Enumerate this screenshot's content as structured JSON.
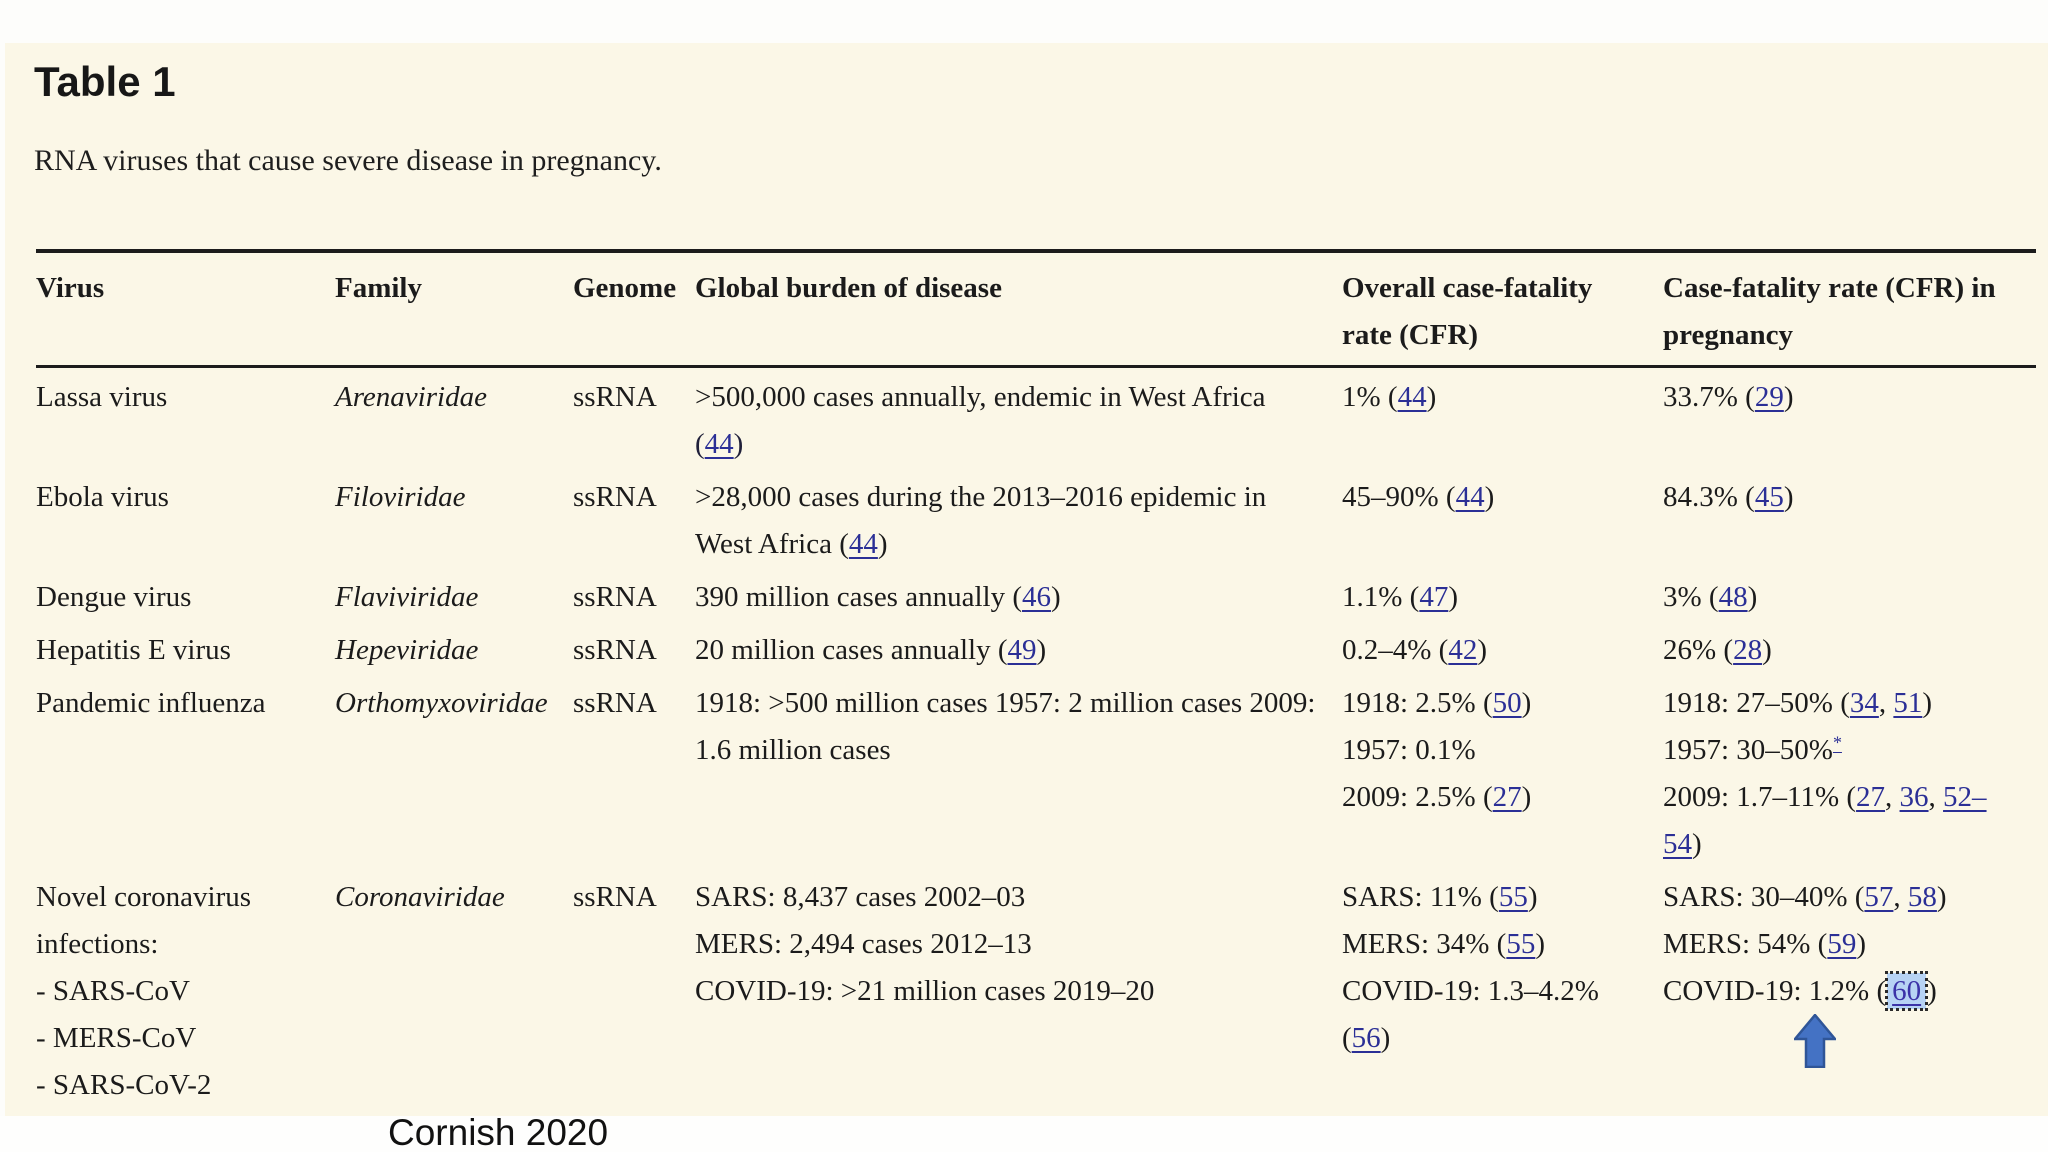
{
  "page": {
    "title": "Table 1",
    "caption": "RNA viruses that cause severe disease in pregnancy.",
    "attribution": "Cornish 2020"
  },
  "colors": {
    "background": "#fbf7e7",
    "link": "#2b2f96",
    "highlight_fill": "#b7d3f4",
    "arrow_fill": "#4472c4",
    "arrow_stroke": "#2f5597"
  },
  "annotations": {
    "arrow_icon": "up-arrow-icon",
    "highlighted_reference": "60"
  },
  "table": {
    "column_keys": [
      "virus",
      "family",
      "genome",
      "burden",
      "cfr",
      "cfr_pregnancy"
    ],
    "headers": [
      {
        "key": "virus",
        "lines": [
          "Virus"
        ]
      },
      {
        "key": "family",
        "lines": [
          "Family"
        ]
      },
      {
        "key": "genome",
        "lines": [
          "Genome"
        ]
      },
      {
        "key": "burden",
        "lines": [
          "Global burden of disease"
        ]
      },
      {
        "key": "cfr",
        "lines": [
          "Overall case-fatality",
          "rate (CFR)"
        ]
      },
      {
        "key": "cfr_pregnancy",
        "lines": [
          "Case-fatality rate (CFR) in",
          "pregnancy"
        ]
      }
    ],
    "rows": [
      {
        "virus": [
          [
            {
              "t": "Lassa virus"
            }
          ]
        ],
        "family": [
          [
            {
              "t": "Arenaviridae"
            }
          ]
        ],
        "genome": [
          [
            {
              "t": "ssRNA"
            }
          ]
        ],
        "burden": [
          [
            {
              "t": ">500,000 cases annually, endemic in West Africa"
            }
          ],
          [
            {
              "t": "(",
              "paren": true
            },
            {
              "t": "44",
              "link": true
            },
            {
              "t": ")",
              "paren": true
            }
          ]
        ],
        "cfr": [
          [
            {
              "t": "1% ("
            },
            {
              "t": "44",
              "link": true
            },
            {
              "t": ")"
            }
          ]
        ],
        "cfr_pregnancy": [
          [
            {
              "t": "33.7% ("
            },
            {
              "t": "29",
              "link": true
            },
            {
              "t": ")"
            }
          ]
        ]
      },
      {
        "virus": [
          [
            {
              "t": "Ebola virus"
            }
          ]
        ],
        "family": [
          [
            {
              "t": "Filoviridae"
            }
          ]
        ],
        "genome": [
          [
            {
              "t": "ssRNA"
            }
          ]
        ],
        "burden": [
          [
            {
              "t": ">28,000 cases during the 2013–2016 epidemic in"
            }
          ],
          [
            {
              "t": "West Africa ("
            },
            {
              "t": "44",
              "link": true
            },
            {
              "t": ")"
            }
          ]
        ],
        "cfr": [
          [
            {
              "t": "45–90% ("
            },
            {
              "t": "44",
              "link": true
            },
            {
              "t": ")"
            }
          ]
        ],
        "cfr_pregnancy": [
          [
            {
              "t": "84.3% ("
            },
            {
              "t": "45",
              "link": true
            },
            {
              "t": ")"
            }
          ]
        ]
      },
      {
        "virus": [
          [
            {
              "t": "Dengue virus"
            }
          ]
        ],
        "family": [
          [
            {
              "t": "Flaviviridae"
            }
          ]
        ],
        "genome": [
          [
            {
              "t": "ssRNA"
            }
          ]
        ],
        "burden": [
          [
            {
              "t": "390 million cases annually ("
            },
            {
              "t": "46",
              "link": true
            },
            {
              "t": ")"
            }
          ]
        ],
        "cfr": [
          [
            {
              "t": "1.1% ("
            },
            {
              "t": "47",
              "link": true
            },
            {
              "t": ")"
            }
          ]
        ],
        "cfr_pregnancy": [
          [
            {
              "t": "3% ("
            },
            {
              "t": "48",
              "link": true
            },
            {
              "t": ")"
            }
          ]
        ]
      },
      {
        "virus": [
          [
            {
              "t": "Hepatitis E virus"
            }
          ]
        ],
        "family": [
          [
            {
              "t": "Hepeviridae"
            }
          ]
        ],
        "genome": [
          [
            {
              "t": "ssRNA"
            }
          ]
        ],
        "burden": [
          [
            {
              "t": "20 million cases annually ("
            },
            {
              "t": "49",
              "link": true
            },
            {
              "t": ")"
            }
          ]
        ],
        "cfr": [
          [
            {
              "t": "0.2–4% ("
            },
            {
              "t": "42",
              "link": true
            },
            {
              "t": ")"
            }
          ]
        ],
        "cfr_pregnancy": [
          [
            {
              "t": "26% ("
            },
            {
              "t": "28",
              "link": true
            },
            {
              "t": ")"
            }
          ]
        ]
      },
      {
        "virus": [
          [
            {
              "t": "Pandemic influenza"
            }
          ]
        ],
        "family": [
          [
            {
              "t": "Orthomyxoviridae"
            }
          ]
        ],
        "genome": [
          [
            {
              "t": "ssRNA"
            }
          ]
        ],
        "burden": [
          [
            {
              "t": "1918: >500 million cases 1957: 2 million cases 2009:"
            }
          ],
          [
            {
              "t": "1.6 million cases"
            }
          ]
        ],
        "cfr": [
          [
            {
              "t": "1918: 2.5% ("
            },
            {
              "t": "50",
              "link": true
            },
            {
              "t": ")"
            }
          ],
          [
            {
              "t": "1957: 0.1%"
            }
          ],
          [
            {
              "t": "2009: 2.5% ("
            },
            {
              "t": "27",
              "link": true
            },
            {
              "t": ")"
            }
          ]
        ],
        "cfr_pregnancy": [
          [
            {
              "t": "1918: 27–50% ("
            },
            {
              "t": "34",
              "link": true
            },
            {
              "t": ", "
            },
            {
              "t": "51",
              "link": true
            },
            {
              "t": ")"
            }
          ],
          [
            {
              "t": "1957: 30–50%"
            },
            {
              "t": "*",
              "link": true,
              "sup": true
            }
          ],
          [
            {
              "t": "2009: 1.7–11% ("
            },
            {
              "t": "27",
              "link": true
            },
            {
              "t": ", "
            },
            {
              "t": "36",
              "link": true
            },
            {
              "t": ", "
            },
            {
              "t": "52–",
              "link": true
            }
          ],
          [
            {
              "t": "54",
              "link": true
            },
            {
              "t": ")"
            }
          ]
        ]
      },
      {
        "virus": [
          [
            {
              "t": "Novel coronavirus"
            }
          ],
          [
            {
              "t": "infections:"
            }
          ],
          [
            {
              "t": "- SARS-CoV"
            }
          ],
          [
            {
              "t": "- MERS-CoV"
            }
          ],
          [
            {
              "t": "- SARS-CoV-2"
            }
          ]
        ],
        "family": [
          [
            {
              "t": "Coronaviridae"
            }
          ]
        ],
        "genome": [
          [
            {
              "t": "ssRNA"
            }
          ]
        ],
        "burden": [
          [
            {
              "t": "SARS: 8,437 cases 2002–03"
            }
          ],
          [
            {
              "t": "MERS: 2,494 cases 2012–13"
            }
          ],
          [
            {
              "t": "COVID-19: >21 million cases 2019–20"
            }
          ]
        ],
        "cfr": [
          [
            {
              "t": "SARS: 11% ("
            },
            {
              "t": "55",
              "link": true
            },
            {
              "t": ")"
            }
          ],
          [
            {
              "t": "MERS: 34% ("
            },
            {
              "t": "55",
              "link": true
            },
            {
              "t": ")"
            }
          ],
          [
            {
              "t": "COVID-19: 1.3–4.2%"
            }
          ],
          [
            {
              "t": "("
            },
            {
              "t": "56",
              "link": true
            },
            {
              "t": ")"
            }
          ]
        ],
        "cfr_pregnancy": [
          [
            {
              "t": "SARS: 30–40% ("
            },
            {
              "t": "57",
              "link": true
            },
            {
              "t": ", "
            },
            {
              "t": "58",
              "link": true
            },
            {
              "t": ")"
            }
          ],
          [
            {
              "t": "MERS: 54% ("
            },
            {
              "t": "59",
              "link": true
            },
            {
              "t": ")"
            }
          ],
          [
            {
              "t": "COVID-19: 1.2% ("
            },
            {
              "t": "60",
              "link": true,
              "boxed": true
            },
            {
              "t": ")"
            }
          ]
        ]
      }
    ]
  }
}
